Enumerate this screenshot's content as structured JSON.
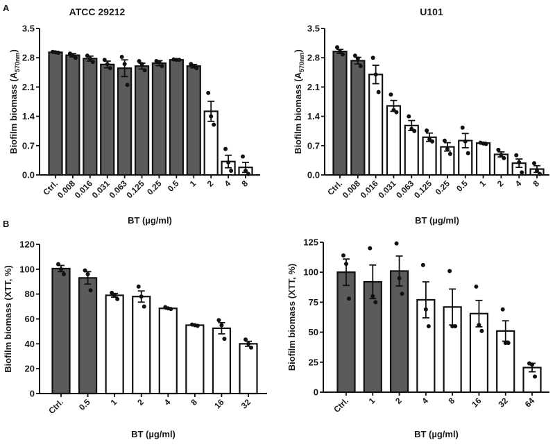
{
  "panel_labels": [
    "A",
    "B"
  ],
  "colors": {
    "filled": "#5b5b5b",
    "empty": "#ffffff",
    "stroke": "#111111"
  },
  "chart_data": [
    {
      "type": "bar",
      "title": "ATCC 29212",
      "xlabel": "BT (µg/ml)",
      "ylabel": {
        "main": "Biofilm biomass (A",
        "sub": "570nm",
        "end": ")"
      },
      "ylim": [
        0,
        3.5
      ],
      "yticks": [
        "0.0",
        "0.7",
        "1.4",
        "2.1",
        "2.8",
        "3.5"
      ],
      "categories": [
        "Ctrl.",
        "0.008",
        "0.016",
        "0.031",
        "0.063",
        "0.125",
        "0.25",
        "0.5",
        "1",
        "2",
        "4",
        "8"
      ],
      "values": [
        2.93,
        2.86,
        2.78,
        2.64,
        2.55,
        2.6,
        2.67,
        2.75,
        2.6,
        1.52,
        0.32,
        0.18
      ],
      "sem": [
        0.02,
        0.04,
        0.06,
        0.08,
        0.2,
        0.07,
        0.06,
        0.01,
        0.04,
        0.24,
        0.15,
        0.12
      ],
      "points": [
        [
          2.94,
          2.93,
          2.92
        ],
        [
          2.9,
          2.85,
          2.8
        ],
        [
          2.85,
          2.78,
          2.7
        ],
        [
          2.75,
          2.65,
          2.55
        ],
        [
          2.82,
          2.65,
          2.15
        ],
        [
          2.72,
          2.65,
          2.5
        ],
        [
          2.72,
          2.7,
          2.6
        ],
        [
          2.76,
          2.75,
          2.75
        ],
        [
          2.65,
          2.6,
          2.55
        ],
        [
          1.96,
          1.4,
          1.2
        ],
        [
          0.62,
          0.3,
          0.1
        ],
        [
          0.44,
          0.1,
          0.02
        ]
      ],
      "filled": [
        true,
        true,
        true,
        true,
        true,
        true,
        true,
        true,
        true,
        false,
        false,
        false
      ]
    },
    {
      "type": "bar",
      "title": "U101",
      "xlabel": "BT (µg/ml)",
      "ylabel": {
        "main": "Biofilm biomass (A",
        "sub": "570nm",
        "end": ")"
      },
      "ylim": [
        0,
        3.5
      ],
      "yticks": [
        "0.0",
        "0.7",
        "1.4",
        "2.1",
        "2.8",
        "3.5"
      ],
      "categories": [
        "Ctrl.",
        "0.008",
        "0.016",
        "0.031",
        "0.063",
        "0.125",
        "0.25",
        "0.5",
        "1",
        "2",
        "4",
        "8"
      ],
      "values": [
        2.95,
        2.73,
        2.4,
        1.65,
        1.18,
        0.9,
        0.67,
        0.82,
        0.76,
        0.49,
        0.28,
        0.14
      ],
      "sem": [
        0.05,
        0.08,
        0.22,
        0.13,
        0.12,
        0.1,
        0.1,
        0.17,
        0.02,
        0.06,
        0.1,
        0.08
      ],
      "points": [
        [
          3.05,
          2.95,
          2.88
        ],
        [
          2.85,
          2.78,
          2.6
        ],
        [
          2.8,
          2.4,
          1.98
        ],
        [
          1.92,
          1.55,
          1.5
        ],
        [
          1.4,
          1.1,
          1.05
        ],
        [
          1.06,
          0.85,
          0.8
        ],
        [
          0.82,
          0.62,
          0.5
        ],
        [
          1.13,
          0.8,
          0.52
        ],
        [
          0.77,
          0.75,
          0.74
        ],
        [
          0.6,
          0.48,
          0.4
        ],
        [
          0.47,
          0.3,
          0.06
        ],
        [
          0.28,
          0.1,
          0.02
        ]
      ],
      "filled": [
        true,
        true,
        false,
        false,
        false,
        false,
        false,
        false,
        false,
        false,
        false,
        false
      ]
    },
    {
      "type": "bar",
      "title": "",
      "xlabel": "BT (µg/ml)",
      "ylabel": {
        "main": "Biofilm biomass (XTT, %)",
        "sub": "",
        "end": ""
      },
      "ylim": [
        0,
        120
      ],
      "yticks": [
        "0",
        "20",
        "40",
        "60",
        "80",
        "100",
        "120"
      ],
      "categories": [
        "Ctrl.",
        "0.5",
        "1",
        "2",
        "4",
        "8",
        "16",
        "32"
      ],
      "values": [
        100.5,
        93,
        79,
        78,
        68.5,
        55,
        52.5,
        40
      ],
      "sem": [
        2.5,
        5,
        1.5,
        4.5,
        0.5,
        0.4,
        4.5,
        2
      ],
      "points": [
        [
          104,
          100,
          96
        ],
        [
          99,
          96,
          83
        ],
        [
          81,
          79,
          76
        ],
        [
          86,
          78,
          70
        ],
        [
          69.5,
          68.5,
          68
        ],
        [
          55.5,
          55,
          54.5
        ],
        [
          59,
          55,
          44
        ],
        [
          43.5,
          40,
          37
        ]
      ],
      "filled": [
        true,
        true,
        false,
        false,
        false,
        false,
        false,
        false
      ]
    },
    {
      "type": "bar",
      "title": "",
      "xlabel": "BT (µg/ml)",
      "ylabel": {
        "main": "Biofilm biomass (XTT, %)",
        "sub": "",
        "end": ""
      },
      "ylim": [
        0,
        125
      ],
      "yticks": [
        "0",
        "25",
        "50",
        "75",
        "100",
        "125"
      ],
      "categories": [
        "Ctrl.",
        "1",
        "2",
        "4",
        "8",
        "16",
        "32",
        "64"
      ],
      "values": [
        100,
        92,
        101,
        77,
        71,
        65.5,
        51,
        20.5
      ],
      "sem": [
        11,
        14,
        12.5,
        15,
        15,
        11,
        8.5,
        3.5
      ],
      "points": [
        [
          114,
          107,
          78
        ],
        [
          120,
          80,
          75
        ],
        [
          124,
          95,
          82
        ],
        [
          106,
          69,
          55
        ],
        [
          101,
          55,
          55
        ],
        [
          88,
          56,
          51
        ],
        [
          69,
          41,
          41
        ],
        [
          24,
          23,
          13
        ]
      ],
      "filled": [
        true,
        true,
        true,
        false,
        false,
        false,
        false,
        false
      ]
    }
  ]
}
